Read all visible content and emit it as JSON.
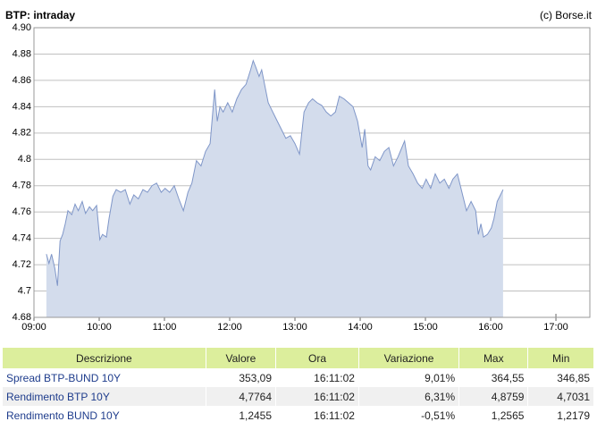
{
  "chart_data": {
    "type": "area",
    "title": "BTP: intraday",
    "subtitle": "(c) Borse.it",
    "x": [
      9.19,
      9.23,
      9.27,
      9.32,
      9.36,
      9.4,
      9.44,
      9.48,
      9.52,
      9.58,
      9.63,
      9.68,
      9.74,
      9.79,
      9.85,
      9.9,
      9.96,
      10.01,
      10.05,
      10.11,
      10.15,
      10.21,
      10.26,
      10.33,
      10.4,
      10.47,
      10.53,
      10.6,
      10.67,
      10.74,
      10.81,
      10.88,
      10.95,
      11.01,
      11.08,
      11.15,
      11.22,
      11.29,
      11.36,
      11.42,
      11.49,
      11.56,
      11.63,
      11.7,
      11.77,
      11.81,
      11.85,
      11.9,
      11.97,
      12.04,
      12.11,
      12.18,
      12.25,
      12.32,
      12.36,
      12.4,
      12.45,
      12.49,
      12.55,
      12.59,
      12.66,
      12.73,
      12.79,
      12.86,
      12.93,
      13.0,
      13.07,
      13.14,
      13.21,
      13.27,
      13.34,
      13.41,
      13.48,
      13.55,
      13.62,
      13.68,
      13.75,
      13.82,
      13.89,
      13.96,
      14.03,
      14.07,
      14.12,
      14.16,
      14.23,
      14.3,
      14.37,
      14.44,
      14.51,
      14.58,
      14.64,
      14.68,
      14.74,
      14.81,
      14.88,
      14.95,
      15.01,
      15.08,
      15.15,
      15.22,
      15.29,
      15.36,
      15.42,
      15.49,
      15.56,
      15.63,
      15.7,
      15.77,
      15.81,
      15.85,
      15.89,
      15.95,
      16.01,
      16.05,
      16.1,
      16.14,
      16.19
    ],
    "values": [
      4.728,
      4.721,
      4.728,
      4.717,
      4.704,
      4.738,
      4.743,
      4.751,
      4.761,
      4.758,
      4.766,
      4.761,
      4.768,
      4.759,
      4.764,
      4.761,
      4.765,
      4.739,
      4.743,
      4.741,
      4.755,
      4.772,
      4.777,
      4.775,
      4.777,
      4.766,
      4.773,
      4.77,
      4.777,
      4.775,
      4.78,
      4.782,
      4.775,
      4.778,
      4.775,
      4.78,
      4.77,
      4.761,
      4.775,
      4.782,
      4.799,
      4.795,
      4.806,
      4.812,
      4.853,
      4.829,
      4.84,
      4.836,
      4.843,
      4.836,
      4.846,
      4.853,
      4.857,
      4.868,
      4.875,
      4.87,
      4.863,
      4.868,
      4.853,
      4.843,
      4.836,
      4.829,
      4.823,
      4.816,
      4.818,
      4.812,
      4.804,
      4.836,
      4.843,
      4.846,
      4.843,
      4.841,
      4.836,
      4.833,
      4.836,
      4.848,
      4.846,
      4.843,
      4.84,
      4.829,
      4.809,
      4.823,
      4.795,
      4.792,
      4.802,
      4.799,
      4.806,
      4.809,
      4.795,
      4.802,
      4.809,
      4.814,
      4.795,
      4.789,
      4.782,
      4.778,
      4.785,
      4.778,
      4.789,
      4.782,
      4.785,
      4.778,
      4.785,
      4.789,
      4.775,
      4.761,
      4.768,
      4.761,
      4.743,
      4.751,
      4.741,
      4.743,
      4.748,
      4.755,
      4.768,
      4.772,
      4.777
    ],
    "color": "#7f96c8",
    "fill": "#d3dcec",
    "xlim": [
      9,
      17.52
    ],
    "xticks": [
      {
        "value": 9,
        "label": "09:00"
      },
      {
        "value": 10,
        "label": "10:00"
      },
      {
        "value": 11,
        "label": "11:00"
      },
      {
        "value": 12,
        "label": "12:00"
      },
      {
        "value": 13,
        "label": "13:00"
      },
      {
        "value": 14,
        "label": "14:00"
      },
      {
        "value": 15,
        "label": "15:00"
      },
      {
        "value": 16,
        "label": "16:00"
      },
      {
        "value": 17,
        "label": "17:00"
      }
    ],
    "ylim": [
      4.68,
      4.9
    ],
    "yticks": [
      4.68,
      4.7,
      4.72,
      4.74,
      4.76,
      4.78,
      4.8,
      4.82,
      4.84,
      4.86,
      4.88,
      {
        "value": 4.9,
        "label": "4.90"
      }
    ],
    "grid": true
  },
  "table": {
    "header": [
      "Descrizione",
      "Valore",
      "Ora",
      "Variazione",
      "Max",
      "Min"
    ],
    "rows": [
      [
        "Spread BTP-BUND 10Y",
        "353,09",
        "16:11:02",
        "9,01%",
        "364,55",
        "346,85"
      ],
      [
        "Rendimento BTP 10Y",
        "4,7764",
        "16:11:02",
        "6,31%",
        "4,8759",
        "4,7031"
      ],
      [
        "Rendimento BUND 10Y",
        "1,2455",
        "16:11:02",
        "-0,51%",
        "1,2565",
        "1,2179"
      ]
    ]
  }
}
